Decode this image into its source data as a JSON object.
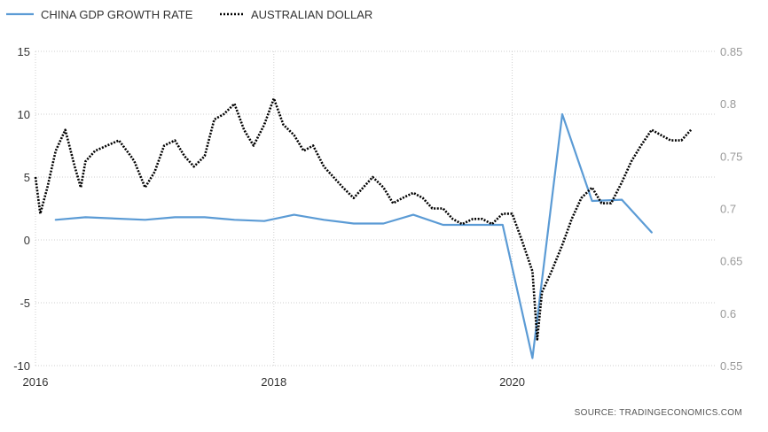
{
  "chart_data": {
    "type": "line",
    "legend": {
      "placement": "top-left",
      "items": [
        {
          "label": "CHINA GDP GROWTH RATE",
          "style": "solid",
          "color": "#5b9bd5"
        },
        {
          "label": "AUSTRALIAN DOLLAR",
          "style": "dotted",
          "color": "#000000"
        }
      ]
    },
    "x_range": [
      2016.0,
      2021.7
    ],
    "x_ticks": [
      {
        "value": 2016,
        "label": "2016"
      },
      {
        "value": 2018,
        "label": "2018"
      },
      {
        "value": 2020,
        "label": "2020"
      }
    ],
    "y_left": {
      "range": [
        -10,
        15
      ],
      "ticks": [
        "15",
        "10",
        "5",
        "0",
        "-5",
        "-10"
      ],
      "tick_values": [
        15,
        10,
        5,
        0,
        -5,
        -10
      ]
    },
    "y_right": {
      "range": [
        0.55,
        0.85
      ],
      "ticks": [
        "0.85",
        "0.8",
        "0.75",
        "0.7",
        "0.65",
        "0.6",
        "0.55"
      ],
      "tick_values": [
        0.85,
        0.8,
        0.75,
        0.7,
        0.65,
        0.6,
        0.55
      ]
    },
    "grid": true,
    "series": [
      {
        "name": "CHINA GDP GROWTH RATE",
        "axis": "left",
        "color": "#5b9bd5",
        "x": [
          2016.17,
          2016.42,
          2016.92,
          2017.17,
          2017.42,
          2017.67,
          2017.92,
          2018.17,
          2018.42,
          2018.67,
          2018.92,
          2019.17,
          2019.42,
          2019.67,
          2019.92,
          2020.17,
          2020.42,
          2020.67,
          2020.92,
          2021.17
        ],
        "values": [
          1.6,
          1.8,
          1.6,
          1.8,
          1.8,
          1.6,
          1.5,
          2.0,
          1.6,
          1.3,
          1.3,
          2.0,
          1.2,
          1.2,
          1.2,
          -9.4,
          10.0,
          3.1,
          3.2,
          0.6
        ]
      },
      {
        "name": "AUSTRALIAN DOLLAR",
        "axis": "right",
        "color": "#000000",
        "x": [
          2016.0,
          2016.04,
          2016.1,
          2016.17,
          2016.25,
          2016.33,
          2016.38,
          2016.42,
          2016.5,
          2016.6,
          2016.7,
          2016.8,
          2016.83,
          2016.92,
          2017.0,
          2017.08,
          2017.17,
          2017.25,
          2017.33,
          2017.42,
          2017.5,
          2017.58,
          2017.67,
          2017.75,
          2017.83,
          2017.92,
          2018.0,
          2018.08,
          2018.17,
          2018.25,
          2018.33,
          2018.42,
          2018.5,
          2018.58,
          2018.67,
          2018.75,
          2018.83,
          2018.92,
          2019.0,
          2019.08,
          2019.17,
          2019.25,
          2019.33,
          2019.42,
          2019.5,
          2019.58,
          2019.67,
          2019.75,
          2019.83,
          2019.92,
          2020.0,
          2020.08,
          2020.17,
          2020.21,
          2020.25,
          2020.33,
          2020.42,
          2020.5,
          2020.58,
          2020.67,
          2020.75,
          2020.83,
          2020.92,
          2021.0,
          2021.08,
          2021.17,
          2021.25,
          2021.33,
          2021.42,
          2021.5
        ],
        "values": [
          0.73,
          0.695,
          0.72,
          0.755,
          0.775,
          0.74,
          0.72,
          0.745,
          0.755,
          0.76,
          0.765,
          0.75,
          0.745,
          0.72,
          0.735,
          0.76,
          0.765,
          0.75,
          0.74,
          0.75,
          0.785,
          0.79,
          0.8,
          0.775,
          0.76,
          0.78,
          0.805,
          0.78,
          0.77,
          0.755,
          0.76,
          0.74,
          0.73,
          0.72,
          0.71,
          0.72,
          0.73,
          0.72,
          0.705,
          0.71,
          0.715,
          0.71,
          0.7,
          0.7,
          0.69,
          0.685,
          0.69,
          0.69,
          0.685,
          0.695,
          0.695,
          0.67,
          0.64,
          0.575,
          0.62,
          0.64,
          0.665,
          0.69,
          0.71,
          0.72,
          0.705,
          0.705,
          0.725,
          0.745,
          0.76,
          0.775,
          0.77,
          0.765,
          0.765,
          0.775
        ]
      }
    ],
    "source_label": "SOURCE: TRADINGECONOMICS.COM"
  }
}
